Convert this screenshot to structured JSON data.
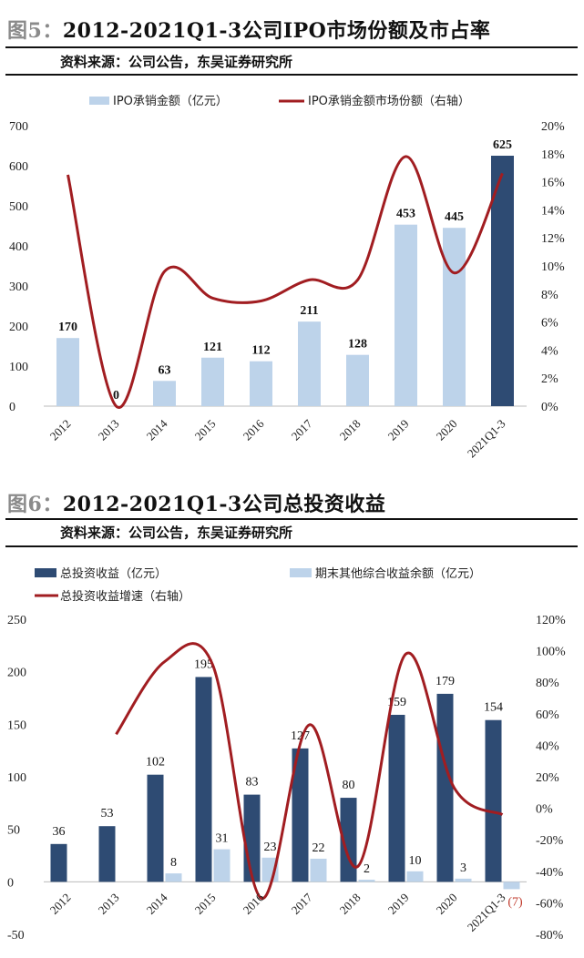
{
  "figure5": {
    "prefix": "图",
    "number": "5：",
    "title": "2012-2021Q1-3公司IPO市场份额及市占率",
    "source": "资料来源：公司公告，东吴证券研究所"
  },
  "figure6": {
    "prefix": "图",
    "number": "6：",
    "title": "2012-2021Q1-3公司总投资收益",
    "source": "资料来源：公司公告，东吴证券研究所"
  },
  "colors": {
    "dark_bar": "#2e4b73",
    "light_bar": "#bdd3ea",
    "line": "#a11d21",
    "negative_label": "#c0392b"
  },
  "chart_data": [
    {
      "type": "bar",
      "categories": [
        "2012",
        "2013",
        "2014",
        "2015",
        "2016",
        "2017",
        "2018",
        "2019",
        "2020",
        "2021Q1-3"
      ],
      "series": [
        {
          "name": "IPO承销金额（亿元）",
          "axis": "left",
          "values": [
            170,
            0,
            63,
            121,
            112,
            211,
            128,
            453,
            445,
            625
          ],
          "labels": [
            "170",
            "0",
            "63",
            "121",
            "112",
            "211",
            "128",
            "453",
            "445",
            "625"
          ]
        },
        {
          "name": "IPO承销金额市场份额（右轴）",
          "axis": "right",
          "kind": "line",
          "values": [
            0.165,
            0.0,
            0.096,
            0.077,
            0.075,
            0.09,
            0.09,
            0.178,
            0.095,
            0.166
          ]
        }
      ],
      "left_ticks": [
        "0",
        "100",
        "200",
        "300",
        "400",
        "500",
        "600",
        "700"
      ],
      "right_ticks": [
        "0%",
        "2%",
        "4%",
        "6%",
        "8%",
        "10%",
        "12%",
        "14%",
        "16%",
        "18%",
        "20%"
      ],
      "ylim": [
        0,
        700
      ],
      "y2lim": [
        0,
        0.2
      ],
      "legend_position": "top",
      "highlight_last_bar": true
    },
    {
      "type": "bar",
      "categories": [
        "2012",
        "2013",
        "2014",
        "2015",
        "2016",
        "2017",
        "2018",
        "2019",
        "2020",
        "2021Q1-3"
      ],
      "series": [
        {
          "name": "总投资收益（亿元）",
          "axis": "left",
          "values": [
            36,
            53,
            102,
            195,
            83,
            127,
            80,
            159,
            179,
            154
          ],
          "labels": [
            "36",
            "53",
            "102",
            "195",
            "83",
            "127",
            "80",
            "159",
            "179",
            "154"
          ]
        },
        {
          "name": "期末其他综合收益余额（亿元）",
          "axis": "left",
          "values": [
            null,
            null,
            8,
            31,
            23,
            22,
            2,
            10,
            3,
            -7
          ],
          "labels": [
            "",
            "",
            "8",
            "31",
            "23",
            "22",
            "2",
            "10",
            "3",
            "(7)"
          ]
        },
        {
          "name": "总投资收益增速（右轴）",
          "axis": "right",
          "kind": "line",
          "values": [
            null,
            0.47,
            0.93,
            0.91,
            -0.57,
            0.53,
            -0.37,
            0.98,
            0.13,
            -0.04
          ]
        }
      ],
      "left_ticks": [
        "-50",
        "0",
        "50",
        "100",
        "150",
        "200",
        "250"
      ],
      "right_ticks": [
        "-80%",
        "-60%",
        "-40%",
        "-20%",
        "0%",
        "20%",
        "40%",
        "60%",
        "80%",
        "100%",
        "120%"
      ],
      "ylim": [
        -50,
        250
      ],
      "y2lim": [
        -0.8,
        1.2
      ],
      "legend_position": "top"
    }
  ]
}
